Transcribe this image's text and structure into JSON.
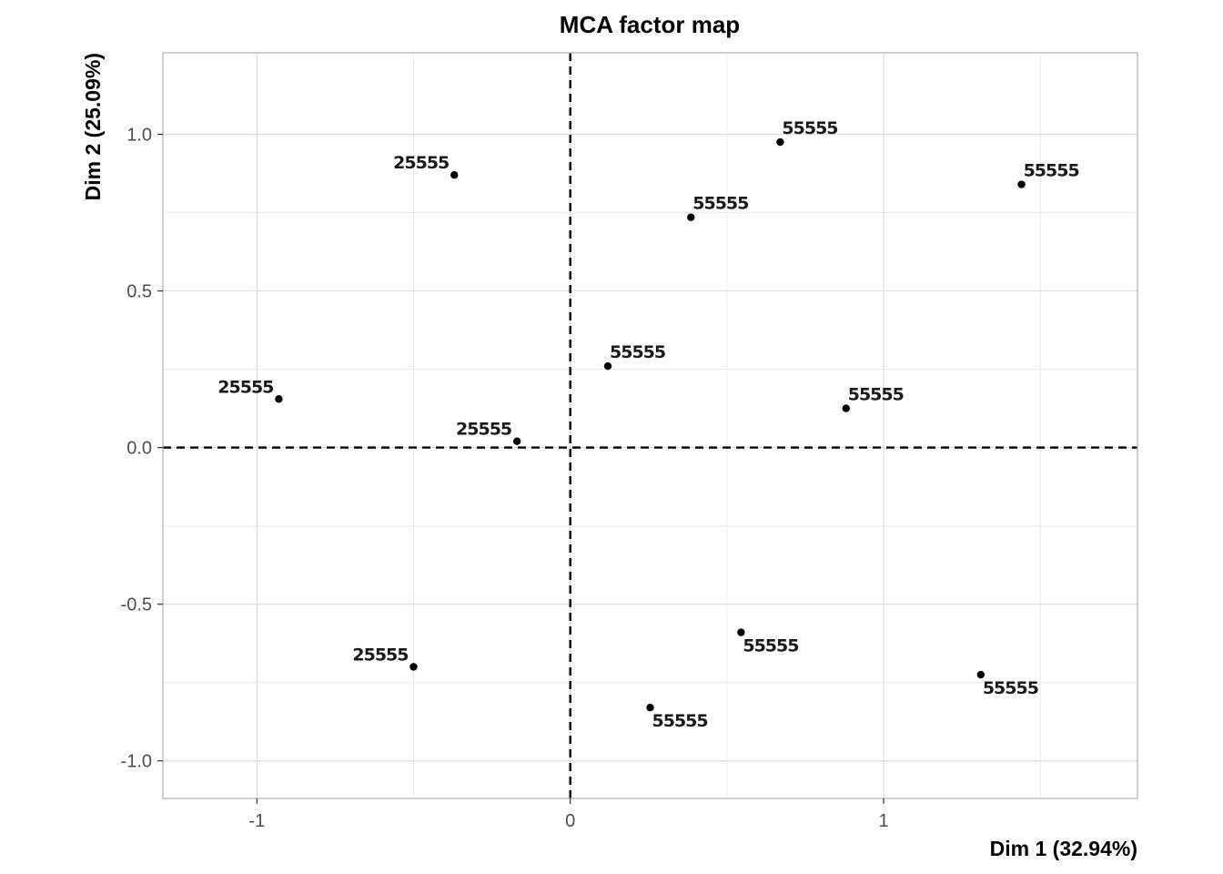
{
  "chart_data": {
    "type": "scatter",
    "title": "MCA factor map",
    "xlabel": "Dim 1 (32.94%)",
    "ylabel": "Dim 2 (25.09%)",
    "xlim": [
      -1.3,
      1.81
    ],
    "ylim": [
      -1.12,
      1.26
    ],
    "x_ticks": [
      -1,
      0,
      1
    ],
    "x_tick_labels": [
      "-1",
      "0",
      "1"
    ],
    "y_ticks": [
      -1.0,
      -0.5,
      0.0,
      0.5,
      1.0
    ],
    "y_tick_labels": [
      "-1.0",
      "-0.5",
      "0.0",
      "0.5",
      "1.0"
    ],
    "grid": true,
    "reference_lines": {
      "x": 0,
      "y": 0,
      "style": "dashed"
    },
    "point_color": "#000000",
    "points": [
      {
        "x": -0.37,
        "y": 0.87,
        "label": "25555"
      },
      {
        "x": -0.93,
        "y": 0.155,
        "label": "25555"
      },
      {
        "x": -0.17,
        "y": 0.02,
        "label": "25555"
      },
      {
        "x": -0.5,
        "y": -0.7,
        "label": "25555"
      },
      {
        "x": 0.67,
        "y": 0.975,
        "label": "55555"
      },
      {
        "x": 1.44,
        "y": 0.84,
        "label": "55555"
      },
      {
        "x": 0.385,
        "y": 0.735,
        "label": "55555"
      },
      {
        "x": 0.12,
        "y": 0.26,
        "label": "55555"
      },
      {
        "x": 0.88,
        "y": 0.125,
        "label": "55555"
      },
      {
        "x": 0.545,
        "y": -0.59,
        "label": "55555"
      },
      {
        "x": 1.31,
        "y": -0.725,
        "label": "55555"
      },
      {
        "x": 0.255,
        "y": -0.83,
        "label": "55555"
      }
    ]
  }
}
